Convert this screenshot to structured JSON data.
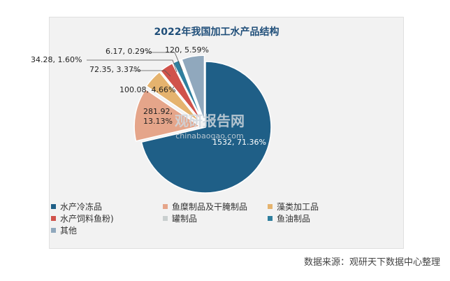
{
  "chart_data": {
    "type": "pie",
    "title": "2022年我国加工水产品结构",
    "watermark_text": "观研报告网",
    "watermark_url": "chinabaogao.com",
    "slices": [
      {
        "name": "水产冷冻品",
        "value": 1532,
        "percent": 71.36,
        "label": "1532, 71.36%",
        "color": "#1f5f87"
      },
      {
        "name": "鱼糜制品及干腌制品",
        "value": 281.92,
        "percent": 13.13,
        "label": "281.92, 13.13%",
        "color": "#e5a58a"
      },
      {
        "name": "藻类加工品",
        "value": 100.08,
        "percent": 4.66,
        "label": "100.08, 4.66%",
        "color": "#e5b36e"
      },
      {
        "name": "水产饲料鱼粉)",
        "value": 72.35,
        "percent": 3.37,
        "label": "72.35, 3.37%",
        "color": "#d0524b"
      },
      {
        "name": "鱼油制品",
        "value": 34.28,
        "percent": 1.6,
        "label": "34.28, 1.60%",
        "color": "#2f7f9e"
      },
      {
        "name": "罐制品",
        "value": 6.17,
        "percent": 0.29,
        "label": "6.17, 0.29%",
        "color": "#c9cfcf"
      },
      {
        "name": "其他",
        "value": 120,
        "percent": 5.59,
        "label": "120, 5.59%",
        "color": "#90a8bd"
      }
    ],
    "legend_order": [
      "水产冷冻品",
      "鱼糜制品及干腌制品",
      "藻类加工品",
      "水产饲料鱼粉)",
      "罐制品",
      "鱼油制品",
      "其他"
    ],
    "legend_position": "bottom"
  },
  "source": "数据来源：观研天下数据中心整理"
}
